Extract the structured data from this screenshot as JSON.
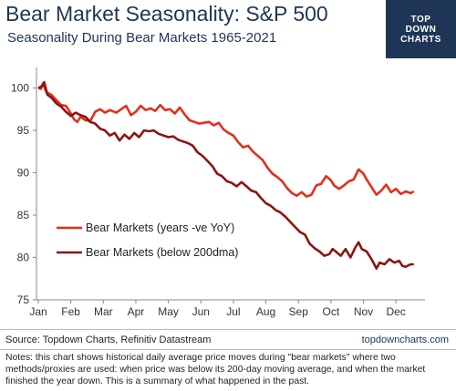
{
  "header": {
    "title": "Bear Market Seasonality: S&P 500",
    "subtitle": "Seasonality During Bear Markets 1965-2021"
  },
  "logo": {
    "line1": "TOP",
    "line2": "DOWN",
    "line3": "CHARTS"
  },
  "footer": {
    "source": "Source: Topdown Charts, Refinitiv Datastream",
    "url": "topdowncharts.com",
    "notes": "Notes: this chart shows historical daily average price moves during \"bear markets\" where two methods/proxies are used: when price was below its 200-day moving average, and when the market finished the year down.  This is a summary of what happened in the past."
  },
  "chart_data": {
    "type": "line",
    "x_categories": [
      "Jan",
      "Feb",
      "Mar",
      "Apr",
      "May",
      "Jun",
      "Jul",
      "Aug",
      "Sep",
      "Oct",
      "Nov",
      "Dec"
    ],
    "xlim": [
      0,
      11.5
    ],
    "ylim": [
      75,
      102
    ],
    "y_ticks": [
      75,
      80,
      85,
      90,
      95,
      100
    ],
    "grid": false,
    "legend_position": "lower-left",
    "series": [
      {
        "name": "Bear Markets (years -ve YoY)",
        "color": "#e0301e",
        "points": [
          [
            0,
            100
          ],
          [
            0.08,
            99.9
          ],
          [
            0.14,
            100.5
          ],
          [
            0.25,
            99.5
          ],
          [
            0.4,
            99.2
          ],
          [
            0.55,
            98.6
          ],
          [
            0.7,
            98.0
          ],
          [
            0.85,
            97.9
          ],
          [
            1.0,
            97.0
          ],
          [
            1.1,
            96.3
          ],
          [
            1.2,
            96.0
          ],
          [
            1.3,
            96.6
          ],
          [
            1.45,
            96.2
          ],
          [
            1.6,
            96.1
          ],
          [
            1.75,
            97.2
          ],
          [
            1.9,
            97.5
          ],
          [
            2.05,
            97.1
          ],
          [
            2.2,
            97.4
          ],
          [
            2.4,
            97.1
          ],
          [
            2.55,
            97.5
          ],
          [
            2.7,
            97.9
          ],
          [
            2.85,
            96.8
          ],
          [
            3.0,
            97.2
          ],
          [
            3.15,
            97.9
          ],
          [
            3.3,
            97.4
          ],
          [
            3.45,
            97.6
          ],
          [
            3.6,
            97.3
          ],
          [
            3.75,
            98.0
          ],
          [
            3.9,
            97.4
          ],
          [
            4.05,
            97.5
          ],
          [
            4.2,
            97.0
          ],
          [
            4.35,
            97.7
          ],
          [
            4.5,
            96.9
          ],
          [
            4.65,
            96.2
          ],
          [
            4.8,
            96.0
          ],
          [
            4.95,
            95.8
          ],
          [
            5.1,
            95.9
          ],
          [
            5.25,
            96.0
          ],
          [
            5.4,
            95.6
          ],
          [
            5.55,
            95.9
          ],
          [
            5.7,
            95.1
          ],
          [
            5.85,
            94.7
          ],
          [
            6.0,
            94.4
          ],
          [
            6.15,
            93.6
          ],
          [
            6.3,
            93.0
          ],
          [
            6.45,
            93.2
          ],
          [
            6.6,
            92.5
          ],
          [
            6.75,
            92.0
          ],
          [
            6.9,
            91.5
          ],
          [
            7.05,
            90.6
          ],
          [
            7.2,
            89.9
          ],
          [
            7.35,
            89.5
          ],
          [
            7.5,
            89.0
          ],
          [
            7.65,
            88.2
          ],
          [
            7.8,
            87.6
          ],
          [
            7.95,
            87.3
          ],
          [
            8.1,
            87.7
          ],
          [
            8.25,
            87.2
          ],
          [
            8.4,
            87.4
          ],
          [
            8.55,
            88.5
          ],
          [
            8.7,
            88.7
          ],
          [
            8.85,
            89.6
          ],
          [
            9.0,
            89.1
          ],
          [
            9.1,
            88.5
          ],
          [
            9.25,
            88.1
          ],
          [
            9.4,
            88.5
          ],
          [
            9.55,
            89.0
          ],
          [
            9.7,
            89.2
          ],
          [
            9.85,
            90.4
          ],
          [
            10.0,
            89.9
          ],
          [
            10.1,
            89.2
          ],
          [
            10.25,
            88.3
          ],
          [
            10.4,
            87.4
          ],
          [
            10.55,
            87.9
          ],
          [
            10.7,
            88.6
          ],
          [
            10.85,
            87.7
          ],
          [
            11.0,
            88.1
          ],
          [
            11.15,
            87.5
          ],
          [
            11.3,
            87.8
          ],
          [
            11.45,
            87.6
          ],
          [
            11.55,
            87.8
          ]
        ]
      },
      {
        "name": "Bear Markets (below 200dma)",
        "color": "#8b1510",
        "points": [
          [
            0,
            100
          ],
          [
            0.1,
            100.2
          ],
          [
            0.18,
            100.7
          ],
          [
            0.28,
            99.2
          ],
          [
            0.42,
            98.8
          ],
          [
            0.55,
            98.2
          ],
          [
            0.7,
            97.8
          ],
          [
            0.85,
            97.2
          ],
          [
            1.0,
            96.7
          ],
          [
            1.15,
            97.1
          ],
          [
            1.3,
            96.8
          ],
          [
            1.45,
            96.6
          ],
          [
            1.6,
            96.0
          ],
          [
            1.75,
            95.8
          ],
          [
            1.9,
            95.2
          ],
          [
            2.05,
            95.0
          ],
          [
            2.2,
            94.4
          ],
          [
            2.35,
            94.7
          ],
          [
            2.5,
            93.8
          ],
          [
            2.65,
            94.5
          ],
          [
            2.8,
            94.0
          ],
          [
            2.95,
            94.7
          ],
          [
            3.1,
            94.2
          ],
          [
            3.25,
            95.0
          ],
          [
            3.4,
            94.9
          ],
          [
            3.55,
            95.0
          ],
          [
            3.7,
            94.6
          ],
          [
            3.85,
            94.4
          ],
          [
            4.0,
            94.2
          ],
          [
            4.15,
            94.3
          ],
          [
            4.3,
            93.9
          ],
          [
            4.45,
            93.7
          ],
          [
            4.6,
            93.5
          ],
          [
            4.75,
            93.2
          ],
          [
            4.9,
            92.4
          ],
          [
            5.05,
            92.0
          ],
          [
            5.2,
            91.4
          ],
          [
            5.35,
            90.8
          ],
          [
            5.5,
            89.9
          ],
          [
            5.65,
            89.6
          ],
          [
            5.8,
            89.0
          ],
          [
            5.95,
            88.8
          ],
          [
            6.1,
            88.4
          ],
          [
            6.25,
            88.9
          ],
          [
            6.4,
            88.4
          ],
          [
            6.55,
            87.9
          ],
          [
            6.7,
            87.7
          ],
          [
            6.85,
            87.0
          ],
          [
            7.0,
            86.4
          ],
          [
            7.15,
            86.1
          ],
          [
            7.3,
            85.6
          ],
          [
            7.45,
            85.3
          ],
          [
            7.6,
            84.8
          ],
          [
            7.75,
            84.2
          ],
          [
            7.9,
            83.6
          ],
          [
            8.05,
            83.0
          ],
          [
            8.2,
            82.7
          ],
          [
            8.35,
            81.6
          ],
          [
            8.5,
            81.1
          ],
          [
            8.65,
            80.7
          ],
          [
            8.8,
            80.2
          ],
          [
            8.95,
            80.4
          ],
          [
            9.05,
            81.0
          ],
          [
            9.15,
            80.7
          ],
          [
            9.3,
            80.2
          ],
          [
            9.45,
            81.0
          ],
          [
            9.6,
            80.0
          ],
          [
            9.75,
            81.2
          ],
          [
            9.85,
            81.8
          ],
          [
            9.95,
            81.0
          ],
          [
            10.1,
            80.7
          ],
          [
            10.25,
            79.8
          ],
          [
            10.4,
            78.7
          ],
          [
            10.5,
            79.4
          ],
          [
            10.65,
            79.2
          ],
          [
            10.8,
            79.8
          ],
          [
            10.95,
            79.4
          ],
          [
            11.1,
            79.6
          ],
          [
            11.2,
            79.0
          ],
          [
            11.3,
            78.9
          ],
          [
            11.45,
            79.2
          ],
          [
            11.55,
            79.2
          ]
        ]
      }
    ]
  }
}
